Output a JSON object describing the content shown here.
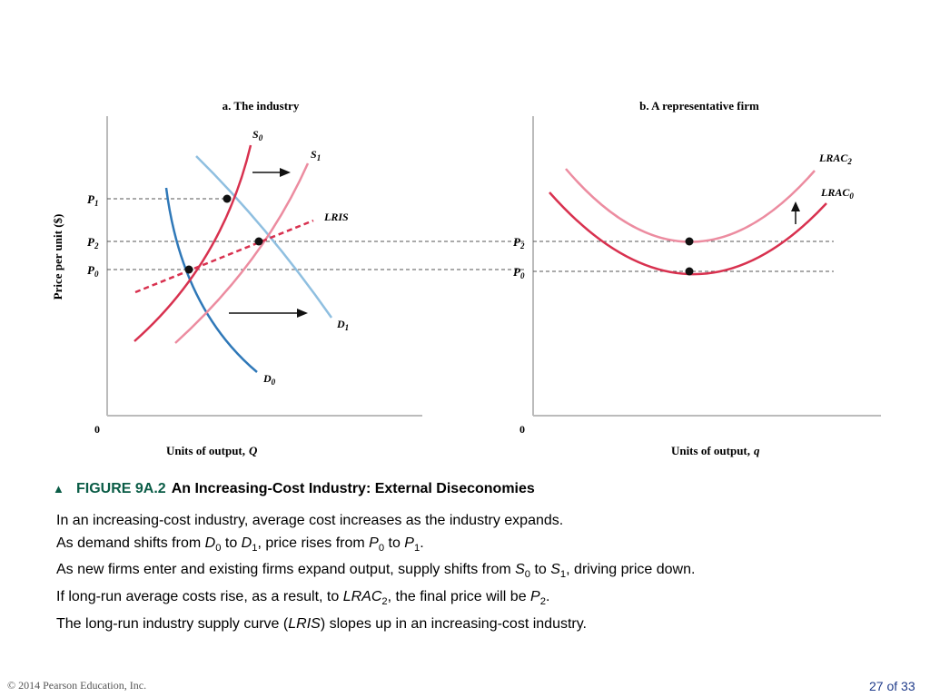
{
  "chart_data": [
    {
      "type": "line",
      "title": "a. The industry",
      "ylabel": "Price per unit ($)",
      "xlabel_main": "Units of output,",
      "xlabel_var": "Q",
      "origin_label": "0",
      "y_labels": {
        "p1": {
          "base": "P",
          "sub": "1"
        },
        "p2": {
          "base": "P",
          "sub": "2"
        },
        "p0": {
          "base": "P",
          "sub": "0"
        }
      },
      "series": [
        {
          "name": "S",
          "sub": "0",
          "color": "#d8314f",
          "style": "solid"
        },
        {
          "name": "S",
          "sub": "1",
          "color": "#ec8ca0",
          "style": "solid"
        },
        {
          "name": "D",
          "sub": "0",
          "color": "#2f78b8",
          "style": "solid"
        },
        {
          "name": "D",
          "sub": "1",
          "color": "#8fbfe0",
          "style": "solid"
        },
        {
          "name": "LRIS",
          "sub": "",
          "color": "#d8314f",
          "style": "dashed"
        }
      ],
      "points": [
        "P0 at S0/D0",
        "P1 at S0/D1",
        "P2 at S1/D1"
      ]
    },
    {
      "type": "line",
      "title": "b. A representative firm",
      "xlabel_main": "Units of output,",
      "xlabel_var": "q",
      "origin_label": "0",
      "y_labels": {
        "p2": {
          "base": "P",
          "sub": "2"
        },
        "p0": {
          "base": "P",
          "sub": "0"
        }
      },
      "series": [
        {
          "name": "LRAC",
          "sub": "2",
          "color": "#ec8ca0",
          "style": "solid"
        },
        {
          "name": "LRAC",
          "sub": "0",
          "color": "#d8314f",
          "style": "solid"
        }
      ]
    }
  ],
  "caption": {
    "figure_number": "FIGURE 9A.2",
    "figure_title": "An Increasing-Cost Industry: External Diseconomies"
  },
  "body": {
    "line1": "In an increasing-cost industry, average cost increases as the industry expands.",
    "line2": {
      "a": "As demand shifts from ",
      "v1": "D",
      "s1": "0",
      "b": " to ",
      "v2": "D",
      "s2": "1",
      "c": ", price rises from ",
      "v3": "P",
      "s3": "0",
      "d": " to ",
      "v4": "P",
      "s4": "1",
      "e": "."
    },
    "line3": {
      "a": "As new firms enter and existing firms expand output, supply shifts from ",
      "v1": "S",
      "s1": "0",
      "b": " to ",
      "v2": "S",
      "s2": "1",
      "c": ", driving price down."
    },
    "line4": {
      "a": "If long-run average costs rise, as a result, to ",
      "v1": "LRAC",
      "s1": "2",
      "b": ", the final price will be ",
      "v2": "P",
      "s2": "2",
      "c": "."
    },
    "line5": {
      "a": "The long-run industry supply curve (",
      "v1": "LRIS",
      "b": ") slopes up in an increasing-cost industry."
    }
  },
  "footer": {
    "copyright": "© 2014 Pearson Education, Inc.",
    "page": "27 of 33"
  },
  "colors": {
    "supply_dark": "#d8314f",
    "supply_light": "#ec8ca0",
    "demand_dark": "#2f78b8",
    "demand_light": "#8fbfe0",
    "caption_green": "#0a5c46",
    "page_blue": "#1f3b8a"
  }
}
